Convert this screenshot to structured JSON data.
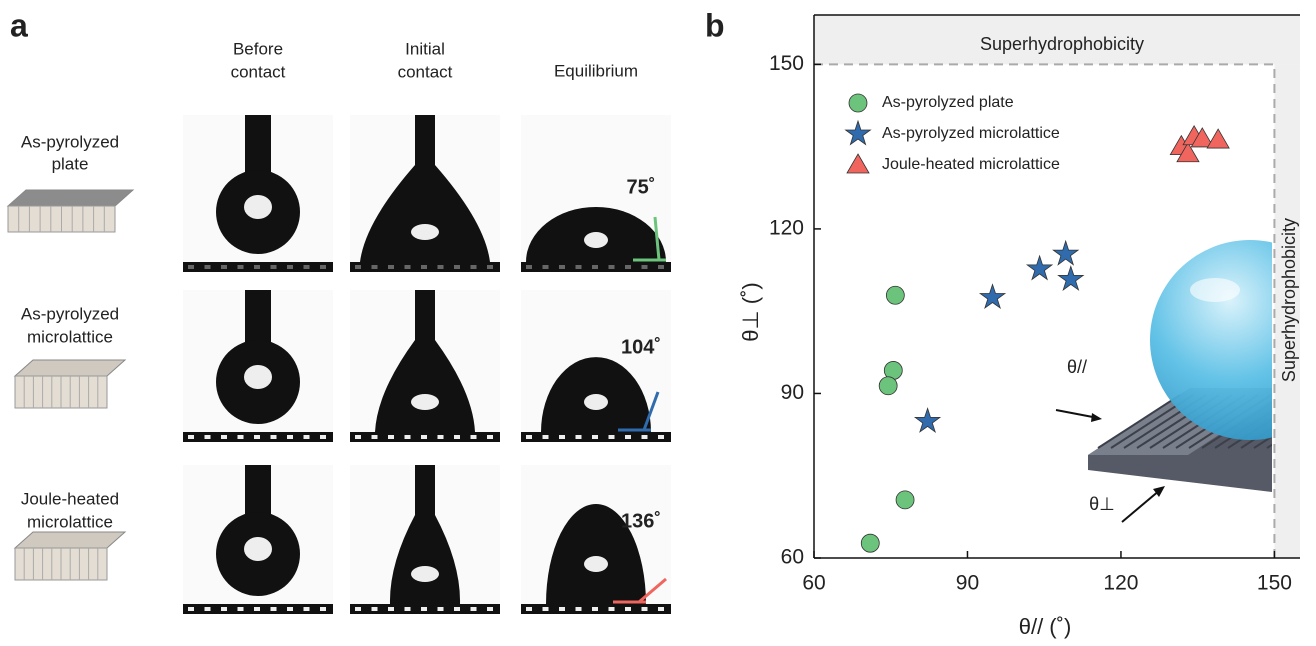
{
  "panel_a": {
    "label": "a",
    "columns": [
      [
        "Before",
        "contact"
      ],
      [
        "Initial",
        "contact"
      ],
      [
        "Equilibrium"
      ]
    ],
    "rows": [
      [
        "As-pyrolyzed",
        "plate"
      ],
      [
        "As-pyrolyzed",
        "microlattice"
      ],
      [
        "Joule-heated",
        "microlattice"
      ]
    ],
    "angles": [
      "75˚",
      "104˚",
      "136˚"
    ]
  },
  "chart_data": {
    "type": "scatter",
    "label": "b",
    "xlabel": "θ// (˚)",
    "ylabel": "θ⊥ (˚)",
    "xlim": [
      60,
      155
    ],
    "ylim": [
      60,
      159
    ],
    "xticks": [
      60,
      90,
      120,
      150
    ],
    "yticks": [
      60,
      90,
      120,
      150
    ],
    "threshold": 150,
    "region_label": "Superhydrophobicity",
    "inset_labels": [
      "θ//",
      "θ⊥"
    ],
    "series": [
      {
        "name": "As-pyrolyzed plate",
        "color": "#6cc47c",
        "marker": "circle",
        "x": [
          75.9,
          75.5,
          74.5,
          77.8,
          71.0
        ],
        "values": [
          107.9,
          94.2,
          91.4,
          70.6,
          62.7
        ]
      },
      {
        "name": "As-pyrolyzed microlattice",
        "color": "#2f6bad",
        "marker": "star",
        "x": [
          82.2,
          94.9,
          104.1,
          109.2,
          110.2
        ],
        "values": [
          84.9,
          107.5,
          112.7,
          115.4,
          110.8
        ]
      },
      {
        "name": "Joule-heated microlattice",
        "color": "#f0665e",
        "marker": "triangle",
        "x": [
          131.8,
          133.1,
          134.3,
          135.9,
          139.0
        ],
        "values": [
          135.0,
          133.7,
          136.8,
          136.4,
          136.2
        ]
      }
    ]
  }
}
